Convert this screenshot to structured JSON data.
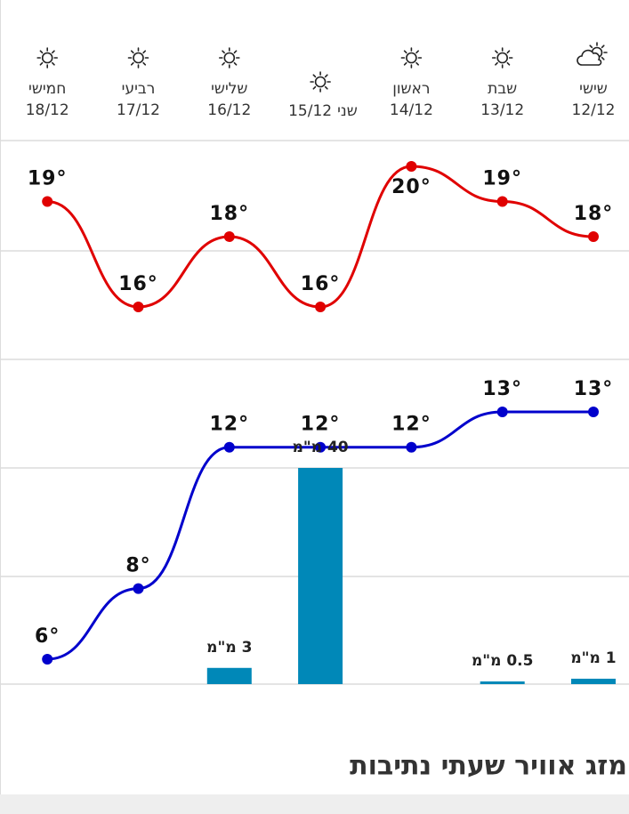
{
  "heading": "מזג אוויר שעתי נתיבות",
  "chart_data": {
    "type": "line",
    "categories": [
      "12/12",
      "13/12",
      "14/12",
      "15/12",
      "16/12",
      "17/12",
      "18/12"
    ],
    "day_names": [
      "שישי",
      "שבת",
      "ראשון",
      "שני",
      "שלישי",
      "רביעי",
      "חמישי"
    ],
    "series": [
      {
        "color": "#e00000",
        "values": [
          18,
          19,
          20,
          16,
          18,
          16,
          19
        ],
        "value_labels": [
          "18°",
          "19°",
          "20°",
          "16°",
          "18°",
          "16°",
          "19°"
        ]
      },
      {
        "color": "#0000cc",
        "values": [
          13,
          13,
          12,
          12,
          12,
          8,
          6
        ],
        "value_labels": [
          "13°",
          "13°",
          "12°",
          "12°",
          "12°",
          "8°",
          "6°"
        ]
      },
      {
        "type": "bar",
        "color": "#0088b8",
        "values": [
          1,
          0.5,
          null,
          40,
          3,
          null,
          null
        ],
        "value_labels": [
          "1 מ\"מ",
          "0.5 מ\"מ",
          null,
          "40 מ\"מ",
          "3 מ\"מ",
          null,
          null
        ]
      }
    ]
  }
}
